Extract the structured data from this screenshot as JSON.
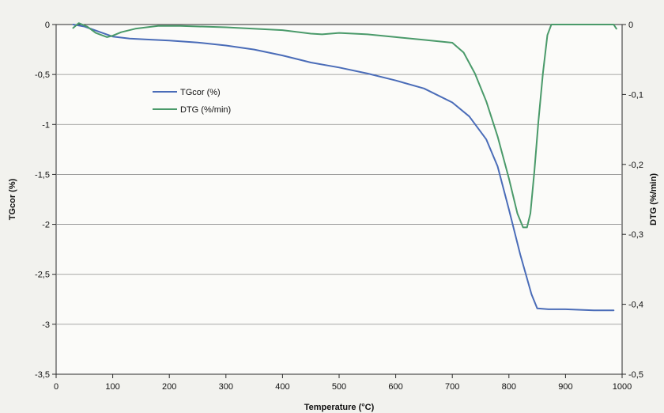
{
  "chart_data": {
    "type": "line",
    "xlabel": "Temperature (°C)",
    "ylabel_left": "TGcor (%)",
    "ylabel_right": "DTG (%/min)",
    "xlim": [
      0,
      1000
    ],
    "ylim_left": [
      -3.5,
      0
    ],
    "ylim_right": [
      -0.5,
      0
    ],
    "x_ticks": [
      "0",
      "100",
      "200",
      "300",
      "400",
      "500",
      "600",
      "700",
      "800",
      "900",
      "1000"
    ],
    "y_left_ticks": [
      "0",
      "-0,5",
      "-1",
      "-1,5",
      "-2",
      "-2,5",
      "-3",
      "-3,5"
    ],
    "y_right_ticks": [
      "0",
      "-0,1",
      "-0,2",
      "-0,3",
      "-0,4",
      "-0,5"
    ],
    "grid": "horizontal",
    "legend_position": "top-left",
    "series": [
      {
        "name": "TGcor (%)",
        "axis": "left",
        "color": "#4a6cb8",
        "points": [
          [
            30,
            0
          ],
          [
            50,
            -0.02
          ],
          [
            70,
            -0.06
          ],
          [
            100,
            -0.12
          ],
          [
            130,
            -0.14
          ],
          [
            160,
            -0.15
          ],
          [
            200,
            -0.16
          ],
          [
            250,
            -0.18
          ],
          [
            300,
            -0.21
          ],
          [
            350,
            -0.25
          ],
          [
            400,
            -0.31
          ],
          [
            450,
            -0.38
          ],
          [
            500,
            -0.43
          ],
          [
            550,
            -0.49
          ],
          [
            600,
            -0.56
          ],
          [
            650,
            -0.64
          ],
          [
            700,
            -0.78
          ],
          [
            730,
            -0.92
          ],
          [
            760,
            -1.15
          ],
          [
            780,
            -1.42
          ],
          [
            800,
            -1.85
          ],
          [
            820,
            -2.3
          ],
          [
            840,
            -2.7
          ],
          [
            850,
            -2.84
          ],
          [
            870,
            -2.85
          ],
          [
            900,
            -2.85
          ],
          [
            950,
            -2.86
          ],
          [
            985,
            -2.86
          ]
        ]
      },
      {
        "name": "DTG (%/min)",
        "axis": "right",
        "color": "#4a9a6a",
        "points": [
          [
            30,
            -0.005
          ],
          [
            40,
            0.002
          ],
          [
            55,
            -0.003
          ],
          [
            70,
            -0.012
          ],
          [
            90,
            -0.018
          ],
          [
            100,
            -0.016
          ],
          [
            115,
            -0.011
          ],
          [
            140,
            -0.006
          ],
          [
            180,
            -0.002
          ],
          [
            220,
            -0.002
          ],
          [
            300,
            -0.004
          ],
          [
            400,
            -0.008
          ],
          [
            450,
            -0.013
          ],
          [
            470,
            -0.014
          ],
          [
            500,
            -0.012
          ],
          [
            550,
            -0.014
          ],
          [
            600,
            -0.018
          ],
          [
            650,
            -0.022
          ],
          [
            700,
            -0.026
          ],
          [
            720,
            -0.04
          ],
          [
            740,
            -0.07
          ],
          [
            760,
            -0.11
          ],
          [
            780,
            -0.16
          ],
          [
            800,
            -0.22
          ],
          [
            815,
            -0.27
          ],
          [
            825,
            -0.29
          ],
          [
            832,
            -0.29
          ],
          [
            838,
            -0.27
          ],
          [
            845,
            -0.21
          ],
          [
            852,
            -0.14
          ],
          [
            860,
            -0.07
          ],
          [
            868,
            -0.015
          ],
          [
            875,
            0
          ],
          [
            900,
            0
          ],
          [
            950,
            0
          ],
          [
            985,
            0
          ],
          [
            990,
            -0.006
          ]
        ]
      }
    ]
  }
}
